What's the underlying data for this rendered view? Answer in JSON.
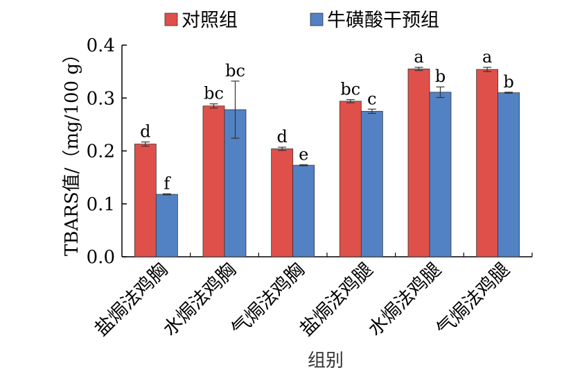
{
  "chart_data": {
    "type": "bar",
    "xlabel": "组别",
    "ylabel": "TBARS值/（mg/100 g）",
    "ylim": [
      0,
      0.4
    ],
    "yticks": [
      "0.0",
      "0.1",
      "0.2",
      "0.3",
      "0.4"
    ],
    "categories": [
      "盐焗法鸡胸",
      "水焗法鸡胸",
      "气焗法鸡胸",
      "盐焗法鸡腿",
      "水焗法鸡腿",
      "气焗法鸡腿"
    ],
    "legend_position": "top",
    "series": [
      {
        "name": "对照组",
        "color": "#e0504a",
        "values": [
          0.213,
          0.285,
          0.204,
          0.294,
          0.355,
          0.354
        ],
        "errors": [
          0.004,
          0.004,
          0.003,
          0.003,
          0.003,
          0.004
        ],
        "letters": [
          "d",
          "bc",
          "d",
          "bc",
          "a",
          "a"
        ]
      },
      {
        "name": "牛磺酸干预组",
        "color": "#5282c4",
        "values": [
          0.118,
          0.278,
          0.173,
          0.275,
          0.311,
          0.31
        ],
        "errors": [
          0.001,
          0.054,
          0.001,
          0.004,
          0.01,
          0.001
        ],
        "letters": [
          "f",
          "bc",
          "e",
          "c",
          "b",
          "b"
        ]
      }
    ]
  }
}
